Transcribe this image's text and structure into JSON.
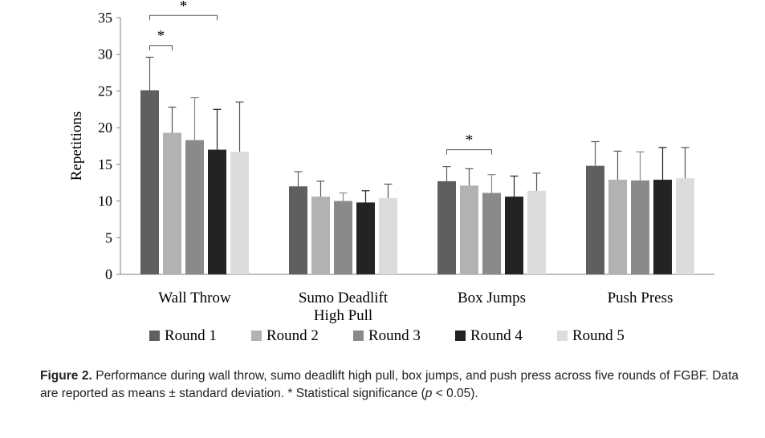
{
  "chart_data": {
    "type": "bar",
    "ylabel": "Repetitions",
    "xlabel": "",
    "ylim": [
      0,
      35
    ],
    "yticks": [
      0,
      5,
      10,
      15,
      20,
      25,
      30,
      35
    ],
    "categories": [
      [
        "Wall Throw"
      ],
      [
        "Sumo Deadlift",
        "High Pull"
      ],
      [
        "Box Jumps"
      ],
      [
        "Push Press"
      ]
    ],
    "series": [
      {
        "name": "Round 1",
        "color": "#5f5f5f",
        "values": [
          25.1,
          12.0,
          12.7,
          14.8
        ],
        "errors": [
          4.5,
          2.0,
          2.0,
          3.3
        ]
      },
      {
        "name": "Round 2",
        "color": "#b2b2b2",
        "values": [
          19.3,
          10.6,
          12.1,
          12.9
        ],
        "errors": [
          3.5,
          2.1,
          2.3,
          3.9
        ]
      },
      {
        "name": "Round 3",
        "color": "#8a8a8a",
        "values": [
          18.3,
          10.0,
          11.1,
          12.8
        ],
        "errors": [
          5.8,
          1.1,
          2.5,
          3.9
        ]
      },
      {
        "name": "Round 4",
        "color": "#232323",
        "values": [
          17.0,
          9.8,
          10.6,
          12.9
        ],
        "errors": [
          5.5,
          1.6,
          2.8,
          4.4
        ]
      },
      {
        "name": "Round 5",
        "color": "#dcdcdc",
        "values": [
          16.7,
          10.4,
          11.4,
          13.1
        ],
        "errors": [
          6.8,
          1.9,
          2.4,
          4.2
        ]
      }
    ],
    "significance": [
      {
        "category": 0,
        "from": 0,
        "to": 1,
        "y": 31.2,
        "label": "*"
      },
      {
        "category": 0,
        "from": 0,
        "to": 3,
        "y": 35.3,
        "label": "*"
      },
      {
        "category": 2,
        "from": 0,
        "to": 2,
        "y": 17.0,
        "label": "*"
      }
    ],
    "legend": "bottom"
  },
  "caption": {
    "label": "Figure 2.",
    "text": "Performance during wall throw, sumo deadlift high pull, box jumps, and push press across five rounds of FGBF. Data are reported as means ± standard deviation. * Statistical significance (",
    "p": "p",
    "tail": " < 0.05)."
  }
}
